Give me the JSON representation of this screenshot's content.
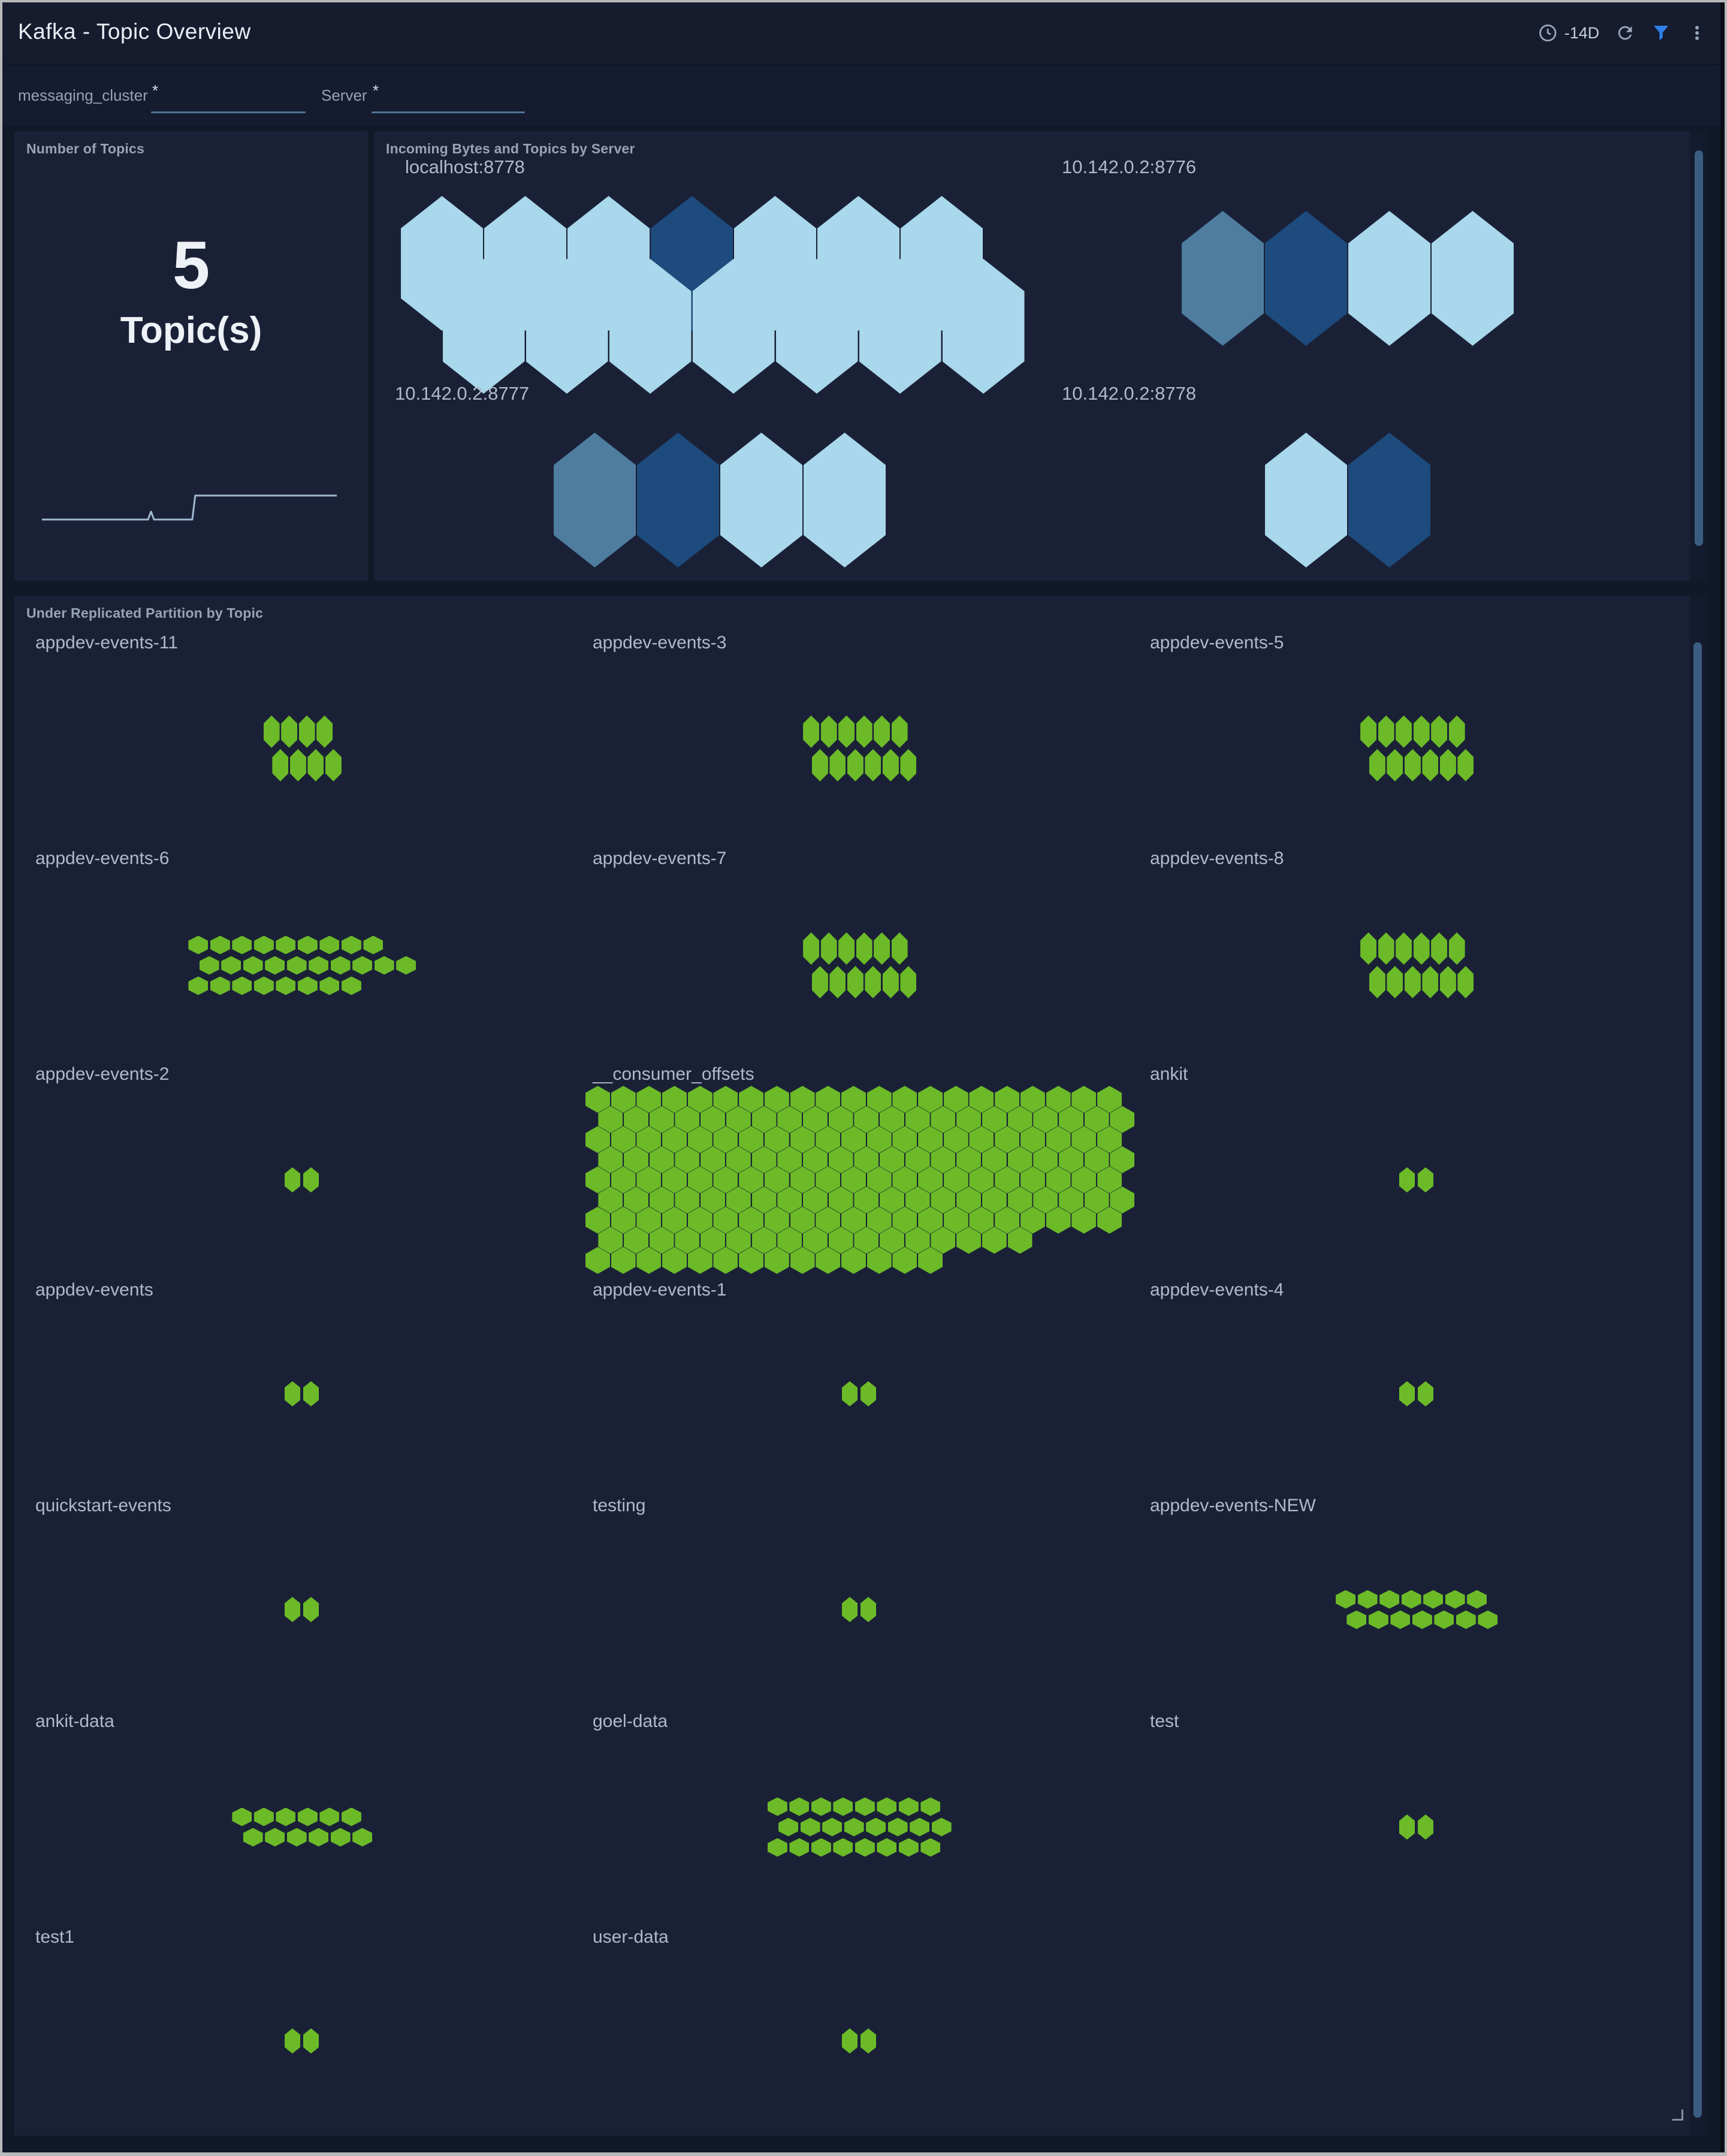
{
  "header": {
    "title": "Kafka - Topic Overview",
    "time_range": "-14D",
    "icons": [
      "clock-icon",
      "refresh-icon",
      "filter-icon",
      "kebab-menu-icon"
    ]
  },
  "filters": [
    {
      "label": "messaging_cluster",
      "value": "*"
    },
    {
      "label": "Server",
      "value": "*"
    }
  ],
  "number_panel": {
    "title": "Number of Topics",
    "value": "5",
    "unit": "Topic(s)",
    "sparkline": {
      "points": [
        [
          0,
          2
        ],
        [
          36,
          2
        ],
        [
          37,
          3
        ],
        [
          38,
          2
        ],
        [
          51,
          2
        ],
        [
          52,
          5
        ],
        [
          100,
          5
        ]
      ],
      "y_range": [
        2,
        5
      ]
    }
  },
  "server_panel": {
    "title": "Incoming Bytes and Topics by Server",
    "servers": [
      {
        "name": "localhost:8778",
        "rows": [
          7,
          7
        ],
        "colors": [
          "light",
          "light",
          "light",
          "dark",
          "light",
          "light",
          "light",
          "light",
          "light",
          "light",
          "light",
          "light",
          "light",
          "light"
        ]
      },
      {
        "name": "10.142.0.2:8776",
        "rows": [
          4
        ],
        "colors": [
          "steel",
          "dark",
          "light",
          "light"
        ]
      },
      {
        "name": "10.142.0.2:8777",
        "rows": [
          4
        ],
        "colors": [
          "steel",
          "dark",
          "light",
          "light"
        ]
      },
      {
        "name": "10.142.0.2:8778",
        "rows": [
          2
        ],
        "colors": [
          "light",
          "dark"
        ]
      }
    ]
  },
  "topics_panel": {
    "title": "Under Replicated Partition by Topic",
    "topics": [
      {
        "name": "appdev-events-11",
        "shape": "tall",
        "rows": [
          4,
          4
        ],
        "partitions": 8
      },
      {
        "name": "appdev-events-3",
        "shape": "tall",
        "rows": [
          6,
          6
        ],
        "partitions": 12
      },
      {
        "name": "appdev-events-5",
        "shape": "tall",
        "rows": [
          6,
          6
        ],
        "partitions": 12
      },
      {
        "name": "appdev-events-6",
        "shape": "squat",
        "rows": [
          9,
          10,
          8
        ],
        "partitions": 27
      },
      {
        "name": "appdev-events-7",
        "shape": "tall",
        "rows": [
          6,
          6
        ],
        "partitions": 12
      },
      {
        "name": "appdev-events-8",
        "shape": "tall",
        "rows": [
          6,
          6
        ],
        "partitions": 12
      },
      {
        "name": "appdev-events-2",
        "shape": "pair",
        "rows": [
          2
        ],
        "partitions": 2
      },
      {
        "name": "__consumer_offsets",
        "shape": "dense",
        "rows": [
          21,
          21,
          21,
          21,
          21,
          21,
          21,
          17,
          14
        ],
        "partitions": 178
      },
      {
        "name": "ankit",
        "shape": "pair",
        "rows": [
          2
        ],
        "partitions": 2
      },
      {
        "name": "appdev-events",
        "shape": "pair",
        "rows": [
          2
        ],
        "partitions": 2
      },
      {
        "name": "appdev-events-1",
        "shape": "pair",
        "rows": [
          2
        ],
        "partitions": 2
      },
      {
        "name": "appdev-events-4",
        "shape": "pair",
        "rows": [
          2
        ],
        "partitions": 2
      },
      {
        "name": "quickstart-events",
        "shape": "pair",
        "rows": [
          2
        ],
        "partitions": 2
      },
      {
        "name": "testing",
        "shape": "pair",
        "rows": [
          2
        ],
        "partitions": 2
      },
      {
        "name": "appdev-events-NEW",
        "shape": "squat",
        "rows": [
          7,
          7
        ],
        "partitions": 14
      },
      {
        "name": "ankit-data",
        "shape": "squat",
        "rows": [
          6,
          6
        ],
        "partitions": 12
      },
      {
        "name": "goel-data",
        "shape": "squat",
        "rows": [
          8,
          8,
          8
        ],
        "partitions": 24
      },
      {
        "name": "test",
        "shape": "pair",
        "rows": [
          2
        ],
        "partitions": 2
      },
      {
        "name": "test1",
        "shape": "pair",
        "rows": [
          2
        ],
        "partitions": 2
      },
      {
        "name": "user-data",
        "shape": "pair",
        "rows": [
          2
        ],
        "partitions": 2
      }
    ]
  },
  "colors": {
    "green": "#6cba28",
    "light": "#a9d7eb",
    "steel": "#4e7da0",
    "dark": "#1d4b7d",
    "accent_blue": "#2f80e8",
    "sparkline": "#9fb8cf",
    "scrollbar": "#3c5d82"
  }
}
